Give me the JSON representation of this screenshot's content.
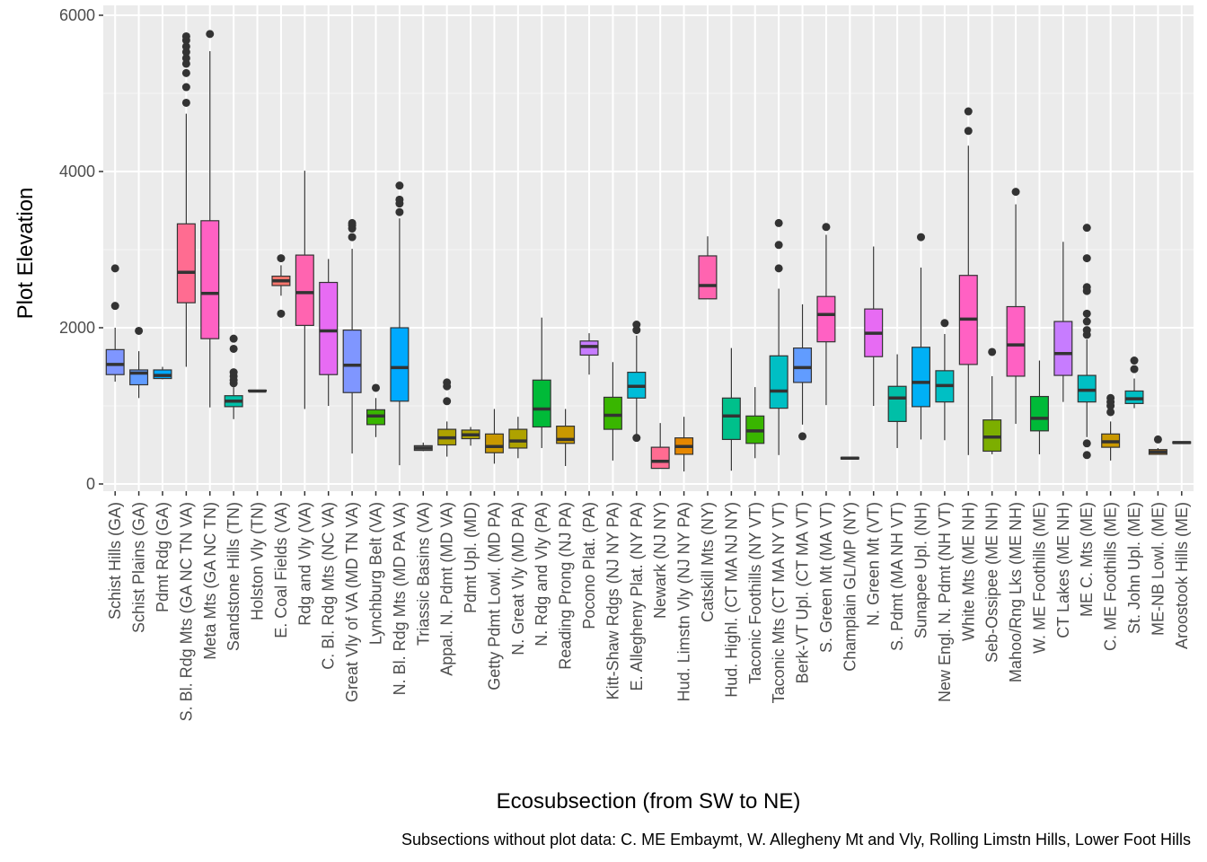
{
  "chart_data": {
    "type": "boxplot",
    "xlabel": "Ecosubsection (from SW to NE)",
    "ylabel": "Plot Elevation",
    "caption": "Subsections without plot data: C. ME Embaymt, W. Allegheny Mt and Vly, Rolling Limstn Hills, Lower Foot Hills",
    "ylim": [
      -100,
      6000
    ],
    "yticks": [
      0,
      2000,
      4000,
      6000
    ],
    "grid": true,
    "legend": "none",
    "categories": [
      "Schist Hills (GA)",
      "Schist Plains (GA)",
      "Pdmt Rdg (GA)",
      "S. Bl. Rdg Mts (GA NC TN VA)",
      "Meta Mts (GA NC TN)",
      "Sandstone Hills (TN)",
      "Holston Vly (TN)",
      "E. Coal Fields (VA)",
      "Rdg and Vly (VA)",
      "C. Bl. Rdg Mts (NC VA)",
      "Great Vly of VA (MD TN VA)",
      "Lynchburg Belt (VA)",
      "N. Bl. Rdg Mts (MD PA VA)",
      "Triassic Basins (VA)",
      "Appal. N. Pdmt (MD VA)",
      "Pdmt Upl. (MD)",
      "Getty Pdmt Lowl. (MD PA)",
      "N. Great Vly (MD PA)",
      "N. Rdg and Vly (PA)",
      "Reading Prong (NJ PA)",
      "Pocono Plat. (PA)",
      "Kitt-Shaw Rdgs (NJ NY PA)",
      "E. Allegheny Plat. (NY PA)",
      "Newark (NJ NY)",
      "Hud. Limstn Vly (NJ NY PA)",
      "Catskill Mts (NY)",
      "Hud. Highl. (CT MA NJ NY)",
      "Taconic Foothills (NY VT)",
      "Taconic Mts (CT MA NY VT)",
      "Berk-VT Upl. (CT MA VT)",
      "S. Green Mt (MA VT)",
      "Champlain GL/MP (NY)",
      "N. Green Mt (VT)",
      "S. Pdmt (MA NH VT)",
      "Sunapee Upl. (NH)",
      "New Engl. N. Pdmt (NH VT)",
      "White Mts (ME NH)",
      "Seb-Ossipee  (ME NH)",
      "Mahoo/Rng Lks (ME NH)",
      "W. ME Foothills (ME)",
      "CT Lakes (ME NH)",
      "ME C. Mts (ME)",
      "C. ME Foothills (ME)",
      "St. John Upl. (ME)",
      "ME-NB Lowl. (ME)",
      "Aroostook Hills (ME)"
    ],
    "boxes": [
      {
        "lower": 1310,
        "q1": 1400,
        "median": 1530,
        "q3": 1720,
        "upper": 2000,
        "outliers": [
          2280,
          2760
        ],
        "color": "#7F96FF"
      },
      {
        "lower": 1100,
        "q1": 1270,
        "median": 1420,
        "q3": 1460,
        "upper": 1700,
        "outliers": [
          1960
        ],
        "color": "#619CFF"
      },
      {
        "lower": 1340,
        "q1": 1350,
        "median": 1390,
        "q3": 1460,
        "upper": 1500,
        "outliers": [],
        "color": "#00A9FF"
      },
      {
        "lower": 1500,
        "q1": 2320,
        "median": 2710,
        "q3": 3330,
        "upper": 4740,
        "outliers": [
          4880,
          5080,
          5260,
          5380,
          5450,
          5530,
          5600,
          5680,
          5730
        ],
        "color": "#FF6C91"
      },
      {
        "lower": 980,
        "q1": 1860,
        "median": 2440,
        "q3": 3370,
        "upper": 5540,
        "outliers": [
          5760
        ],
        "color": "#FF61C3"
      },
      {
        "lower": 830,
        "q1": 990,
        "median": 1060,
        "q3": 1130,
        "upper": 1240,
        "outliers": [
          1290,
          1330,
          1380,
          1430,
          1730,
          1860
        ],
        "color": "#00BFA7"
      },
      {
        "lower": 1190,
        "q1": 1190,
        "median": 1190,
        "q3": 1200,
        "upper": 1200,
        "outliers": [],
        "color": "#00BD5C"
      },
      {
        "lower": 2410,
        "q1": 2540,
        "median": 2600,
        "q3": 2660,
        "upper": 2800,
        "outliers": [
          2180,
          2890
        ],
        "color": "#F8766D"
      },
      {
        "lower": 960,
        "q1": 2030,
        "median": 2450,
        "q3": 2930,
        "upper": 4010,
        "outliers": [],
        "color": "#FF64B0"
      },
      {
        "lower": 1000,
        "q1": 1400,
        "median": 1960,
        "q3": 2580,
        "upper": 2880,
        "outliers": [],
        "color": "#E76BF3"
      },
      {
        "lower": 390,
        "q1": 1170,
        "median": 1520,
        "q3": 1970,
        "upper": 3010,
        "outliers": [
          3160,
          3270,
          3310,
          3340
        ],
        "color": "#7F96FF"
      },
      {
        "lower": 600,
        "q1": 760,
        "median": 870,
        "q3": 950,
        "upper": 1100,
        "outliers": [
          1230
        ],
        "color": "#39B600"
      },
      {
        "lower": 240,
        "q1": 1060,
        "median": 1490,
        "q3": 2000,
        "upper": 3400,
        "outliers": [
          3480,
          3590,
          3640,
          3820
        ],
        "color": "#00A9FF"
      },
      {
        "lower": 420,
        "q1": 430,
        "median": 460,
        "q3": 490,
        "upper": 530,
        "outliers": [],
        "color": "#9E9E9E"
      },
      {
        "lower": 350,
        "q1": 500,
        "median": 590,
        "q3": 700,
        "upper": 800,
        "outliers": [
          1060,
          1250,
          1300
        ],
        "color": "#AEA200"
      },
      {
        "lower": 490,
        "q1": 580,
        "median": 630,
        "q3": 690,
        "upper": 730,
        "outliers": [],
        "color": "#AEA200"
      },
      {
        "lower": 260,
        "q1": 400,
        "median": 480,
        "q3": 640,
        "upper": 960,
        "outliers": [],
        "color": "#C99800"
      },
      {
        "lower": 330,
        "q1": 460,
        "median": 550,
        "q3": 700,
        "upper": 860,
        "outliers": [],
        "color": "#AEA200"
      },
      {
        "lower": 460,
        "q1": 730,
        "median": 960,
        "q3": 1330,
        "upper": 2130,
        "outliers": [],
        "color": "#00BA38"
      },
      {
        "lower": 230,
        "q1": 520,
        "median": 570,
        "q3": 740,
        "upper": 960,
        "outliers": [],
        "color": "#C99800"
      },
      {
        "lower": 1400,
        "q1": 1650,
        "median": 1760,
        "q3": 1830,
        "upper": 1930,
        "outliers": [],
        "color": "#C77CFF"
      },
      {
        "lower": 300,
        "q1": 700,
        "median": 880,
        "q3": 1110,
        "upper": 1560,
        "outliers": [],
        "color": "#39B600"
      },
      {
        "lower": 590,
        "q1": 1100,
        "median": 1250,
        "q3": 1430,
        "upper": 1900,
        "outliers": [
          590,
          1970,
          2040
        ],
        "color": "#00BCD8"
      },
      {
        "lower": 200,
        "q1": 200,
        "median": 290,
        "q3": 470,
        "upper": 780,
        "outliers": [],
        "color": "#FF6C91"
      },
      {
        "lower": 160,
        "q1": 380,
        "median": 480,
        "q3": 590,
        "upper": 860,
        "outliers": [],
        "color": "#E58700"
      },
      {
        "lower": 2370,
        "q1": 2370,
        "median": 2540,
        "q3": 2920,
        "upper": 3170,
        "outliers": [],
        "color": "#FF64B0"
      },
      {
        "lower": 170,
        "q1": 570,
        "median": 870,
        "q3": 1100,
        "upper": 1740,
        "outliers": [],
        "color": "#00C08B"
      },
      {
        "lower": 330,
        "q1": 520,
        "median": 680,
        "q3": 870,
        "upper": 1240,
        "outliers": [],
        "color": "#39B600"
      },
      {
        "lower": 370,
        "q1": 970,
        "median": 1190,
        "q3": 1640,
        "upper": 2500,
        "outliers": [
          2760,
          3060,
          3340
        ],
        "color": "#00BFC4"
      },
      {
        "lower": 760,
        "q1": 1300,
        "median": 1490,
        "q3": 1740,
        "upper": 2300,
        "outliers": [
          610
        ],
        "color": "#619CFF"
      },
      {
        "lower": 1010,
        "q1": 1820,
        "median": 2170,
        "q3": 2400,
        "upper": 3190,
        "outliers": [
          3290
        ],
        "color": "#FF61C3"
      },
      {
        "lower": 310,
        "q1": 320,
        "median": 330,
        "q3": 340,
        "upper": 350,
        "outliers": [],
        "color": "#F8766D"
      },
      {
        "lower": 1000,
        "q1": 1630,
        "median": 1930,
        "q3": 2240,
        "upper": 3040,
        "outliers": [],
        "color": "#E76BF3"
      },
      {
        "lower": 460,
        "q1": 800,
        "median": 1100,
        "q3": 1250,
        "upper": 1660,
        "outliers": [],
        "color": "#00BFA7"
      },
      {
        "lower": 570,
        "q1": 990,
        "median": 1300,
        "q3": 1750,
        "upper": 2770,
        "outliers": [
          3160
        ],
        "color": "#00B0F6"
      },
      {
        "lower": 560,
        "q1": 1050,
        "median": 1260,
        "q3": 1450,
        "upper": 1920,
        "outliers": [
          2060
        ],
        "color": "#00BFC4"
      },
      {
        "lower": 370,
        "q1": 1530,
        "median": 2110,
        "q3": 2670,
        "upper": 4330,
        "outliers": [
          4520,
          4770
        ],
        "color": "#FF61C3"
      },
      {
        "lower": 380,
        "q1": 420,
        "median": 600,
        "q3": 820,
        "upper": 1380,
        "outliers": [
          1690
        ],
        "color": "#7CAE00"
      },
      {
        "lower": 770,
        "q1": 1380,
        "median": 1780,
        "q3": 2270,
        "upper": 3580,
        "outliers": [
          3740
        ],
        "color": "#FF61C3"
      },
      {
        "lower": 380,
        "q1": 680,
        "median": 840,
        "q3": 1120,
        "upper": 1580,
        "outliers": [],
        "color": "#00BA38"
      },
      {
        "lower": 1050,
        "q1": 1390,
        "median": 1670,
        "q3": 2080,
        "upper": 3100,
        "outliers": [],
        "color": "#C77CFF"
      },
      {
        "lower": 600,
        "q1": 1050,
        "median": 1200,
        "q3": 1390,
        "upper": 1850,
        "outliers": [
          370,
          520,
          1910,
          1970,
          2080,
          2180,
          2470,
          2520,
          2890,
          3280
        ],
        "color": "#00BFC4"
      },
      {
        "lower": 300,
        "q1": 470,
        "median": 540,
        "q3": 640,
        "upper": 800,
        "outliers": [
          920,
          1000,
          1050,
          1100
        ],
        "color": "#C99800"
      },
      {
        "lower": 970,
        "q1": 1030,
        "median": 1090,
        "q3": 1190,
        "upper": 1350,
        "outliers": [
          1470,
          1580
        ],
        "color": "#00BFC4"
      },
      {
        "lower": 380,
        "q1": 380,
        "median": 410,
        "q3": 440,
        "upper": 460,
        "outliers": [
          570
        ],
        "color": "#E58700"
      },
      {
        "lower": 520,
        "q1": 520,
        "median": 530,
        "q3": 540,
        "upper": 540,
        "outliers": [],
        "color": "#9590FF"
      }
    ]
  }
}
